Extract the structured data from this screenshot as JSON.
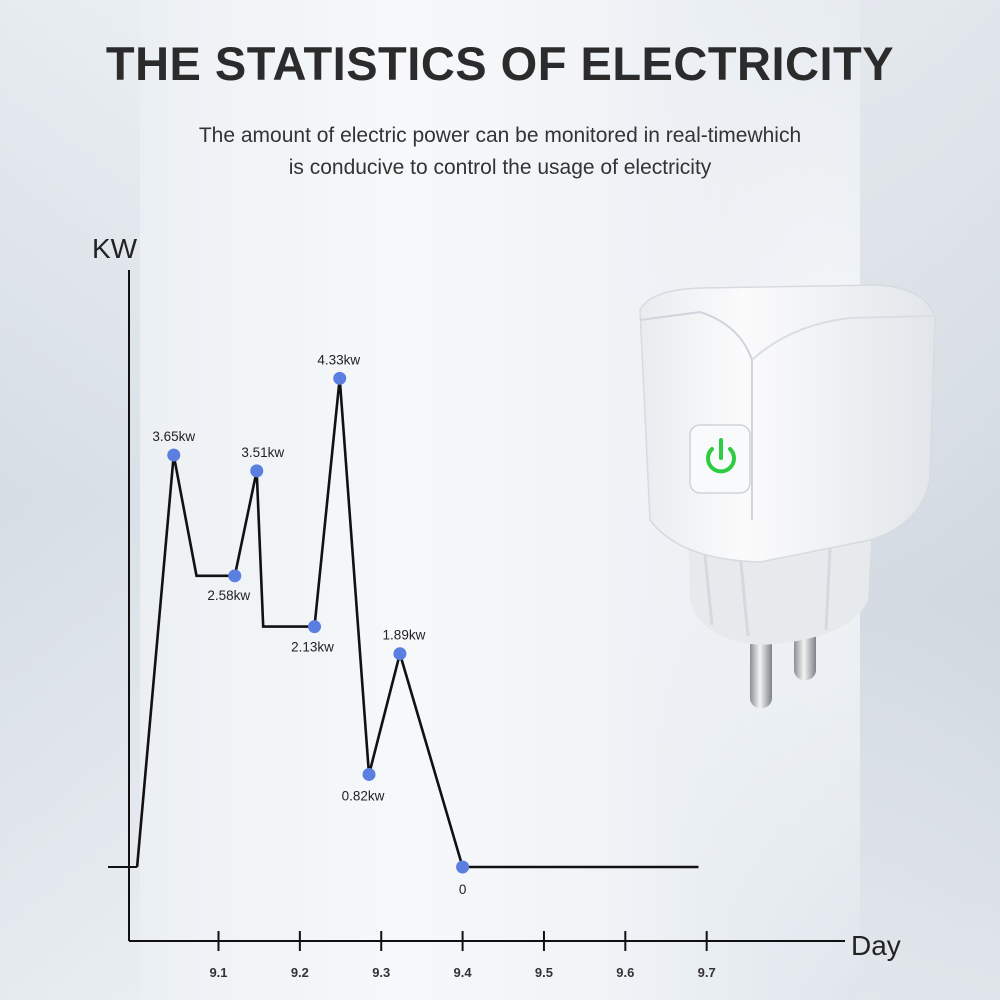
{
  "header": {
    "title": "THE STATISTICS OF ELECTRICITY",
    "subtitle_line1": "The amount of electric power can be monitored in real-timewhich",
    "subtitle_line2": "is conducive to control the usage of electricity"
  },
  "product": {
    "name_icon": "smart-plug",
    "power_icon": "power-icon",
    "power_color": "#2ecc40",
    "plug_color": "#f7f8f9"
  },
  "chart_data": {
    "type": "line",
    "ylabel": "KW",
    "xlabel": "Day",
    "x_ticks": [
      "9.1",
      "9.2",
      "9.3",
      "9.4",
      "9.5",
      "9.6",
      "9.7"
    ],
    "x_tick_values": [
      9.1,
      9.2,
      9.3,
      9.4,
      9.5,
      9.6,
      9.7
    ],
    "xlim": [
      8.99,
      9.87
    ],
    "ylim": [
      0,
      4.9
    ],
    "line_color": "#111111",
    "marker_color": "#5a7fe0",
    "series": [
      {
        "points": [
          {
            "x": 9.0,
            "y": 0,
            "marker": false
          },
          {
            "x": 9.045,
            "y": 3.65,
            "marker": true,
            "label": "3.65kw"
          },
          {
            "x": 9.073,
            "y": 2.58,
            "marker": false
          },
          {
            "x": 9.12,
            "y": 2.58,
            "marker": true,
            "label": "2.58kw"
          },
          {
            "x": 9.147,
            "y": 3.51,
            "marker": true,
            "label": "3.51kw"
          },
          {
            "x": 9.155,
            "y": 2.13,
            "marker": false
          },
          {
            "x": 9.218,
            "y": 2.13,
            "marker": true,
            "label": "2.13kw"
          },
          {
            "x": 9.249,
            "y": 4.33,
            "marker": true,
            "label": "4.33kw"
          },
          {
            "x": 9.285,
            "y": 0.82,
            "marker": true,
            "label": "0.82kw"
          },
          {
            "x": 9.323,
            "y": 1.89,
            "marker": true,
            "label": "1.89kw"
          },
          {
            "x": 9.4,
            "y": 0,
            "marker": true,
            "label": "0"
          },
          {
            "x": 9.69,
            "y": 0,
            "marker": false
          }
        ]
      }
    ]
  }
}
